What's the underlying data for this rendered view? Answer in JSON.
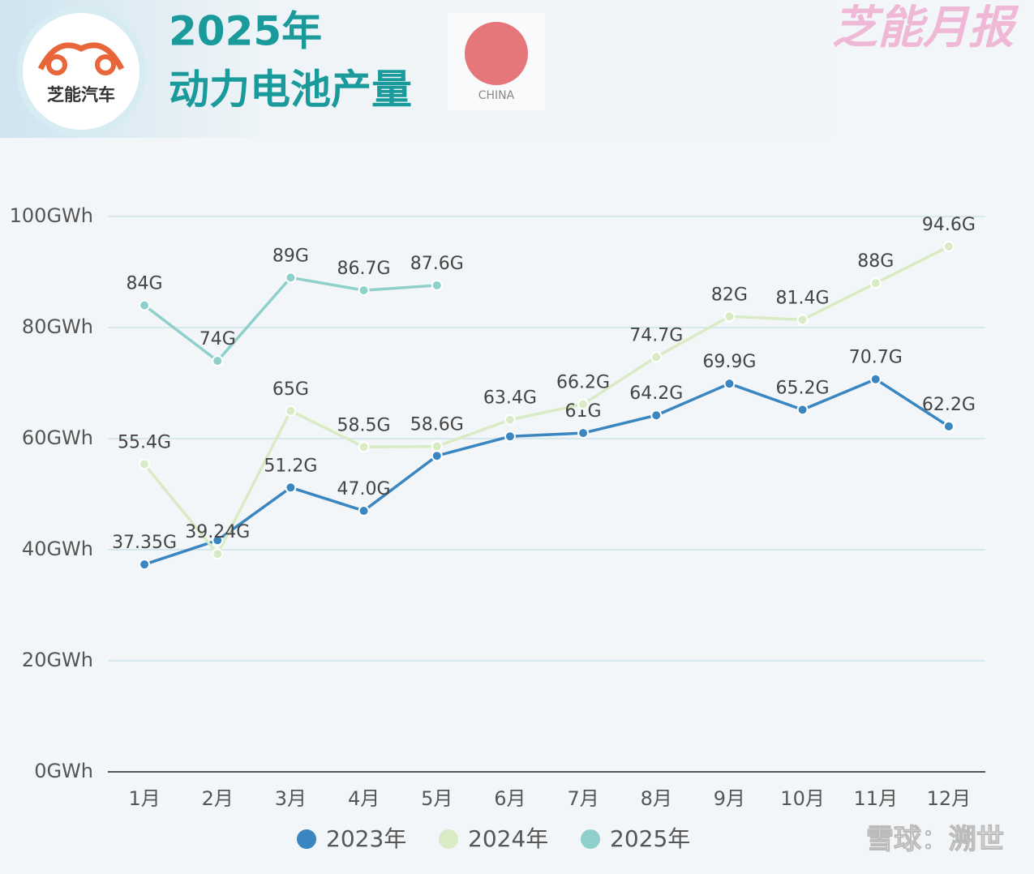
{
  "header": {
    "brand": "芝能汽车",
    "title_line1": "2025年",
    "title_line2": "动力电池产量",
    "flag_label": "CHINA",
    "watermark": "芝能月报",
    "footer": "雪球：溯世"
  },
  "chart_data": {
    "type": "line",
    "categories": [
      "1月",
      "2月",
      "3月",
      "4月",
      "5月",
      "6月",
      "7月",
      "8月",
      "9月",
      "10月",
      "11月",
      "12月"
    ],
    "series": [
      {
        "name": "2023年",
        "color": "#3a86c0",
        "values": [
          37.35,
          41.7,
          51.2,
          47.0,
          56.9,
          60.4,
          61,
          64.2,
          69.9,
          65.2,
          70.7,
          62.2
        ],
        "value_labels": [
          "37.35G",
          null,
          "51.2G",
          "47.0G",
          null,
          null,
          "61G",
          "64.2G",
          "69.9G",
          "65.2G",
          "70.7G",
          "62.2G"
        ]
      },
      {
        "name": "2024年",
        "color": "#d9ebc4",
        "values": [
          55.4,
          39.24,
          65,
          58.5,
          58.6,
          63.4,
          66.2,
          74.7,
          82,
          81.4,
          88,
          94.6
        ],
        "value_labels": [
          "55.4G",
          "39.24G",
          "65G",
          "58.5G",
          "58.6G",
          "63.4G",
          "66.2G",
          "74.7G",
          "82G",
          "81.4G",
          "88G",
          "94.6G"
        ]
      },
      {
        "name": "2025年",
        "color": "#8fd0cc",
        "values": [
          84,
          74,
          89,
          86.7,
          87.6,
          null,
          null,
          null,
          null,
          null,
          null,
          null
        ],
        "value_labels": [
          "84G",
          "74G",
          "89G",
          "86.7G",
          "87.6G",
          null,
          null,
          null,
          null,
          null,
          null,
          null
        ]
      }
    ],
    "ylim": [
      0,
      100
    ],
    "yticks": [
      {
        "value": 0,
        "label": "0GWh"
      },
      {
        "value": 20,
        "label": "20GWh"
      },
      {
        "value": 40,
        "label": "40GWh"
      },
      {
        "value": 60,
        "label": "60GWh"
      },
      {
        "value": 80,
        "label": "80GWh"
      },
      {
        "value": 100,
        "label": "100GWh"
      }
    ],
    "grid": true,
    "legend": "bottom"
  }
}
